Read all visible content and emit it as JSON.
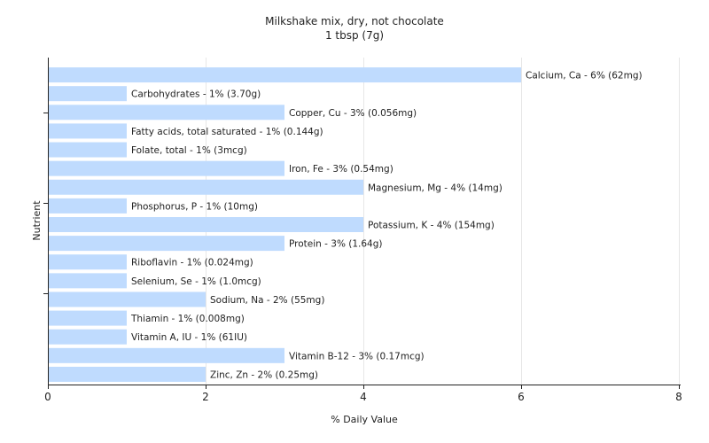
{
  "chart_data": {
    "type": "bar",
    "orientation": "horizontal",
    "title": "Milkshake mix, dry, not chocolate",
    "subtitle": "1 tbsp (7g)",
    "xlabel": "% Daily Value",
    "ylabel": "Nutrient",
    "xlim": [
      0,
      8
    ],
    "xticks": [
      "0",
      "2",
      "4",
      "6",
      "8"
    ],
    "grid": true,
    "bar_color": "#bfdbfe",
    "categories": [
      "Calcium, Ca",
      "Carbohydrates",
      "Copper, Cu",
      "Fatty acids, total saturated",
      "Folate, total",
      "Iron, Fe",
      "Magnesium, Mg",
      "Phosphorus, P",
      "Potassium, K",
      "Protein",
      "Riboflavin",
      "Selenium, Se",
      "Sodium, Na",
      "Thiamin",
      "Vitamin A, IU",
      "Vitamin B-12",
      "Zinc, Zn"
    ],
    "values": [
      6,
      1,
      3,
      1,
      1,
      3,
      4,
      1,
      4,
      3,
      1,
      1,
      2,
      1,
      1,
      3,
      2
    ],
    "labels": [
      "Calcium, Ca - 6% (62mg)",
      "Carbohydrates - 1% (3.70g)",
      "Copper, Cu - 3% (0.056mg)",
      "Fatty acids, total saturated - 1% (0.144g)",
      "Folate, total - 1% (3mcg)",
      "Iron, Fe - 3% (0.54mg)",
      "Magnesium, Mg - 4% (14mg)",
      "Phosphorus, P - 1% (10mg)",
      "Potassium, K - 4% (154mg)",
      "Protein - 3% (1.64g)",
      "Riboflavin - 1% (0.024mg)",
      "Selenium, Se - 1% (1.0mcg)",
      "Sodium, Na - 2% (55mg)",
      "Thiamin - 1% (0.008mg)",
      "Vitamin A, IU - 1% (61IU)",
      "Vitamin B-12 - 3% (0.17mcg)",
      "Zinc, Zn - 2% (0.25mg)"
    ]
  }
}
